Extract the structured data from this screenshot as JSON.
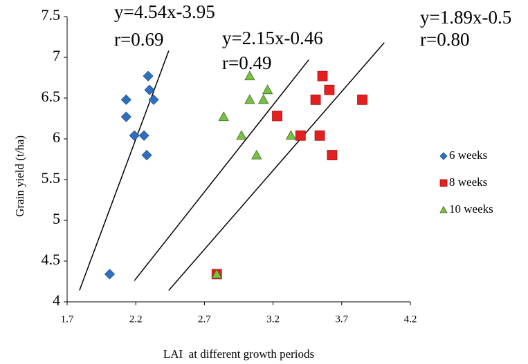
{
  "chart_data": {
    "type": "scatter",
    "x_label": "LAI  at different growth periods",
    "y_label": "Grain yield (t/ha)",
    "xlim": [
      1.7,
      4.2
    ],
    "xticks": [
      1.7,
      2.2,
      2.7,
      3.2,
      3.7,
      4.2
    ],
    "ylim": [
      4,
      7.5
    ],
    "yticks": [
      4,
      4.5,
      5,
      5.5,
      6,
      6.5,
      7,
      7.5
    ],
    "legend_position": "right",
    "series": [
      {
        "name": "6 weeks",
        "color": "#2f6fc0",
        "marker": "diamond",
        "x": [
          2.01,
          2.13,
          2.13,
          2.19,
          2.26,
          2.28,
          2.29,
          2.3,
          2.33
        ],
        "values": [
          4.34,
          6.27,
          6.48,
          6.04,
          6.04,
          5.8,
          6.77,
          6.6,
          6.48
        ]
      },
      {
        "name": "8 weeks",
        "color": "#e41f1f",
        "marker": "square",
        "x": [
          2.79,
          3.23,
          3.4,
          3.51,
          3.54,
          3.56,
          3.61,
          3.63,
          3.85
        ],
        "values": [
          4.34,
          6.28,
          6.04,
          6.48,
          6.04,
          6.77,
          6.6,
          5.8,
          6.48
        ]
      },
      {
        "name": "10 weeks",
        "color": "#79c043",
        "marker": "triangle",
        "x": [
          2.79,
          2.84,
          2.97,
          3.03,
          3.03,
          3.08,
          3.13,
          3.16,
          3.33
        ],
        "values": [
          4.34,
          6.27,
          6.04,
          6.77,
          6.48,
          5.8,
          6.48,
          6.6,
          6.04
        ]
      }
    ],
    "annotations": [
      {
        "equation": "y=4.54x-3.95",
        "r": "r=0.69",
        "line_x": [
          1.79,
          2.44
        ],
        "line_y": [
          4.14,
          7.08
        ]
      },
      {
        "equation": "y=2.15x-0.46",
        "r": "r=0.49",
        "line_x": [
          2.19,
          3.46
        ],
        "line_y": [
          4.26,
          6.97
        ]
      },
      {
        "equation": "y=1.89x-0.5",
        "r": "r=0.80",
        "line_x": [
          2.44,
          4.01
        ],
        "line_y": [
          4.14,
          7.18
        ]
      }
    ]
  }
}
